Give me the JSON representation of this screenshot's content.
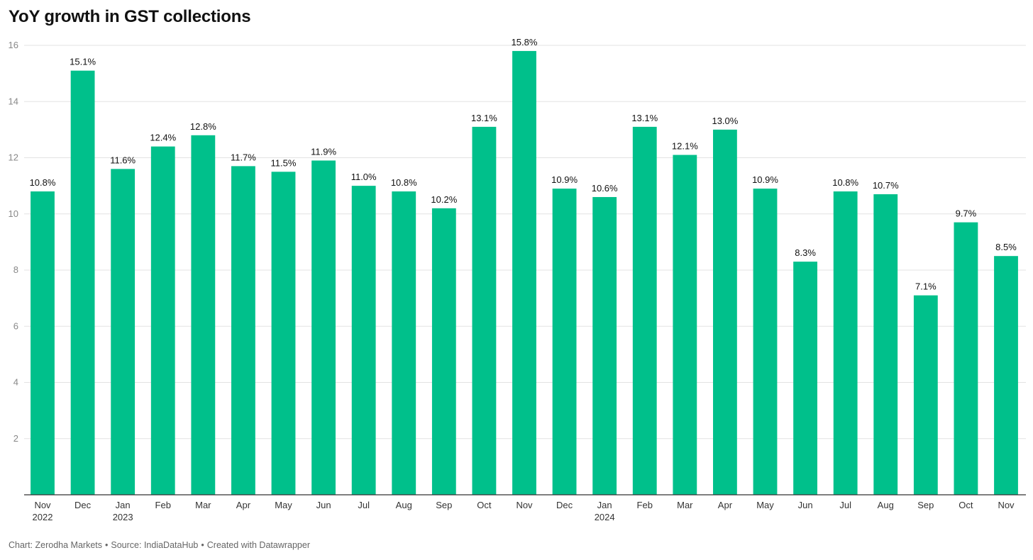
{
  "title": "YoY growth in GST collections",
  "footer": {
    "chart": "Chart: Zerodha Markets",
    "source": "Source: IndiaDataHub",
    "created": "Created with Datawrapper",
    "separator": "•"
  },
  "chart_data": {
    "type": "bar",
    "title": "YoY growth in GST collections",
    "xlabel": "",
    "ylabel": "",
    "ylim": [
      0,
      16
    ],
    "yticks": [
      2,
      4,
      6,
      8,
      10,
      12,
      14,
      16
    ],
    "grid": true,
    "bar_color": "#00c08b",
    "value_suffix": "%",
    "categories": [
      "Nov 2022",
      "Dec 2022",
      "Jan 2023",
      "Feb 2023",
      "Mar 2023",
      "Apr 2023",
      "May 2023",
      "Jun 2023",
      "Jul 2023",
      "Aug 2023",
      "Sep 2023",
      "Oct 2023",
      "Nov 2023",
      "Dec 2023",
      "Jan 2024",
      "Feb 2024",
      "Mar 2024",
      "Apr 2024",
      "May 2024",
      "Jun 2024",
      "Jul 2024",
      "Aug 2024",
      "Sep 2024",
      "Oct 2024",
      "Nov 2024"
    ],
    "tick_labels": [
      [
        "Nov",
        "2022"
      ],
      [
        "Dec",
        ""
      ],
      [
        "Jan",
        "2023"
      ],
      [
        "Feb",
        ""
      ],
      [
        "Mar",
        ""
      ],
      [
        "Apr",
        ""
      ],
      [
        "May",
        ""
      ],
      [
        "Jun",
        ""
      ],
      [
        "Jul",
        ""
      ],
      [
        "Aug",
        ""
      ],
      [
        "Sep",
        ""
      ],
      [
        "Oct",
        ""
      ],
      [
        "Nov",
        ""
      ],
      [
        "Dec",
        ""
      ],
      [
        "Jan",
        "2024"
      ],
      [
        "Feb",
        ""
      ],
      [
        "Mar",
        ""
      ],
      [
        "Apr",
        ""
      ],
      [
        "May",
        ""
      ],
      [
        "Jun",
        ""
      ],
      [
        "Jul",
        ""
      ],
      [
        "Aug",
        ""
      ],
      [
        "Sep",
        ""
      ],
      [
        "Oct",
        ""
      ],
      [
        "Nov",
        ""
      ]
    ],
    "values": [
      10.8,
      15.1,
      11.6,
      12.4,
      12.8,
      11.7,
      11.5,
      11.9,
      11.0,
      10.8,
      10.2,
      13.1,
      15.8,
      10.9,
      10.6,
      13.1,
      12.1,
      13.0,
      10.9,
      8.3,
      10.8,
      10.7,
      7.1,
      9.7,
      8.5
    ],
    "data_labels": [
      "10.8%",
      "15.1%",
      "11.6%",
      "12.4%",
      "12.8%",
      "11.7%",
      "11.5%",
      "11.9%",
      "11.0%",
      "10.8%",
      "10.2%",
      "13.1%",
      "15.8%",
      "10.9%",
      "10.6%",
      "13.1%",
      "12.1%",
      "13.0%",
      "10.9%",
      "8.3%",
      "10.8%",
      "10.7%",
      "7.1%",
      "9.7%",
      "8.5%"
    ]
  }
}
